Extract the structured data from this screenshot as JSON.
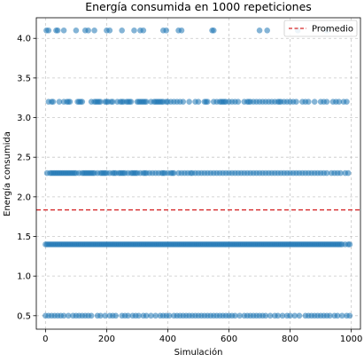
{
  "chart_data": {
    "type": "scatter",
    "title": "Energía consumida en 1000 repeticiones",
    "xlabel": "Simulación",
    "ylabel": "Energía consumida",
    "xlim": [
      -30,
      1030
    ],
    "ylim": [
      0.33,
      4.26
    ],
    "x_ticks": [
      0,
      200,
      400,
      600,
      800,
      1000
    ],
    "y_ticks": [
      0.5,
      1.0,
      1.5,
      2.0,
      2.5,
      3.0,
      3.5,
      4.0
    ],
    "y_tick_labels": [
      "0.5",
      "1.0",
      "1.5",
      "2.0",
      "2.5",
      "3.0",
      "3.5",
      "4.0"
    ],
    "grid": true,
    "legend_position": "top-right",
    "series": [
      {
        "name": "",
        "color": "#1f77b4",
        "levels": [
          {
            "y": 4.1,
            "x": [
              3,
              10,
              35,
              40,
              60,
              100,
              130,
              140,
              160,
              200,
              210,
              250,
              290,
              310,
              320,
              385,
              395,
              435,
              445,
              545,
              550,
              700,
              725,
              825,
              920
            ]
          },
          {
            "y": 3.2,
            "x": [
              10,
              20,
              25,
              45,
              60,
              70,
              75,
              80,
              105,
              110,
              115,
              120,
              150,
              160,
              165,
              170,
              175,
              180,
              195,
              200,
              205,
              215,
              220,
              235,
              245,
              250,
              255,
              265,
              270,
              275,
              280,
              300,
              305,
              310,
              315,
              320,
              325,
              330,
              345,
              355,
              360,
              365,
              370,
              375,
              380,
              385,
              395,
              400,
              410,
              420,
              430,
              440,
              450,
              470,
              490,
              500,
              520,
              525,
              530,
              550,
              560,
              570,
              575,
              580,
              585,
              590,
              600,
              610,
              620,
              630,
              650,
              660,
              665,
              670,
              680,
              690,
              700,
              710,
              720,
              730,
              740,
              750,
              760,
              765,
              770,
              780,
              790,
              800,
              810,
              820,
              840,
              850,
              860,
              880,
              900,
              910,
              920,
              940,
              950,
              960,
              975,
              985
            ]
          },
          {
            "y": 2.3,
            "x": [
              5,
              15,
              20,
              25,
              30,
              35,
              40,
              45,
              50,
              55,
              60,
              65,
              70,
              75,
              80,
              85,
              90,
              95,
              100,
              110,
              120,
              125,
              130,
              135,
              140,
              145,
              150,
              155,
              160,
              170,
              180,
              185,
              190,
              195,
              200,
              210,
              220,
              225,
              230,
              240,
              245,
              250,
              255,
              260,
              270,
              280,
              285,
              290,
              295,
              300,
              310,
              320,
              325,
              330,
              340,
              350,
              360,
              370,
              380,
              385,
              390,
              400,
              410,
              415,
              420,
              435,
              445,
              455,
              465,
              475,
              480,
              490,
              500,
              510,
              520,
              530,
              540,
              550,
              560,
              570,
              580,
              590,
              600,
              610,
              620,
              630,
              640,
              650,
              660,
              670,
              680,
              690,
              700,
              710,
              720,
              730,
              740,
              750,
              760,
              770,
              780,
              790,
              800,
              810,
              820,
              830,
              840,
              850,
              860,
              870,
              880,
              890,
              900,
              910,
              920,
              935,
              945,
              955,
              965,
              980,
              990
            ]
          },
          {
            "y": 1.4,
            "x": [
              0,
              5,
              10,
              15,
              20,
              25,
              30,
              35,
              40,
              45,
              50,
              55,
              60,
              65,
              70,
              75,
              80,
              85,
              90,
              95,
              100,
              105,
              110,
              115,
              120,
              125,
              130,
              135,
              140,
              145,
              150,
              155,
              160,
              165,
              170,
              175,
              180,
              185,
              190,
              195,
              200,
              205,
              210,
              215,
              220,
              225,
              230,
              235,
              240,
              245,
              250,
              255,
              260,
              265,
              270,
              275,
              280,
              285,
              290,
              295,
              300,
              305,
              310,
              315,
              320,
              325,
              330,
              335,
              340,
              345,
              350,
              355,
              360,
              365,
              370,
              375,
              380,
              385,
              390,
              395,
              400,
              405,
              410,
              415,
              420,
              425,
              430,
              435,
              440,
              445,
              450,
              455,
              460,
              465,
              470,
              475,
              480,
              485,
              490,
              495,
              500,
              505,
              510,
              515,
              520,
              525,
              530,
              535,
              540,
              545,
              550,
              555,
              560,
              565,
              570,
              575,
              580,
              585,
              590,
              595,
              600,
              605,
              610,
              615,
              620,
              625,
              630,
              635,
              640,
              645,
              650,
              655,
              660,
              665,
              670,
              675,
              680,
              685,
              690,
              695,
              700,
              705,
              710,
              715,
              720,
              725,
              730,
              735,
              740,
              745,
              750,
              755,
              760,
              765,
              770,
              775,
              780,
              785,
              790,
              795,
              800,
              805,
              810,
              815,
              820,
              825,
              830,
              835,
              840,
              845,
              850,
              855,
              860,
              865,
              870,
              875,
              880,
              885,
              890,
              895,
              900,
              905,
              910,
              915,
              920,
              925,
              930,
              935,
              940,
              945,
              950,
              955,
              960,
              965,
              970,
              980,
              990,
              995
            ]
          },
          {
            "y": 0.5,
            "x": [
              0,
              10,
              20,
              30,
              40,
              50,
              60,
              75,
              90,
              100,
              110,
              120,
              130,
              140,
              150,
              170,
              180,
              195,
              210,
              220,
              230,
              250,
              260,
              270,
              285,
              295,
              305,
              320,
              330,
              345,
              360,
              375,
              385,
              395,
              405,
              420,
              430,
              440,
              450,
              460,
              470,
              480,
              490,
              500,
              510,
              520,
              530,
              540,
              550,
              560,
              570,
              580,
              590,
              600,
              610,
              620,
              635,
              650,
              660,
              670,
              680,
              690,
              700,
              710,
              720,
              735,
              750,
              760,
              775,
              790,
              800,
              815,
              830,
              850,
              860,
              870,
              880,
              890,
              900,
              910,
              920,
              930,
              945,
              955,
              970,
              985,
              995
            ]
          }
        ]
      },
      {
        "name": "Promedio",
        "color": "#d62728",
        "style": "dashed",
        "y": 1.835
      }
    ]
  }
}
